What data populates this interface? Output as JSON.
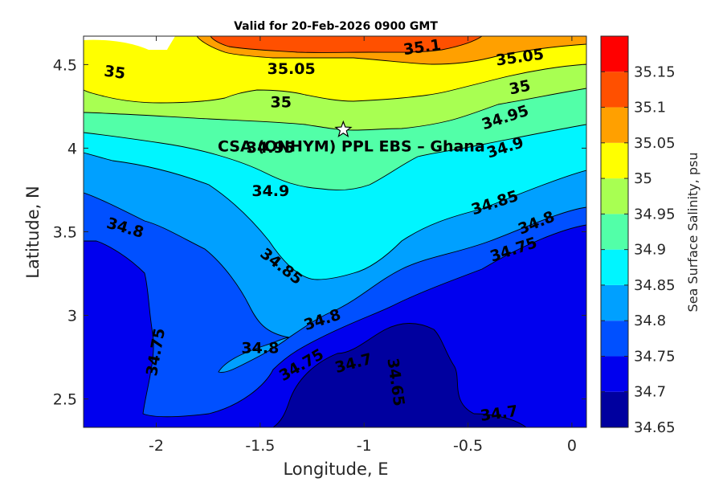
{
  "chart_data": {
    "type": "filled-contour-map",
    "title": "Valid for 20-Feb-2026 0900 GMT",
    "xlabel": "Longitude, E",
    "ylabel": "Latitude, N",
    "xlim": [
      -2.35,
      0.07
    ],
    "ylim": [
      2.33,
      4.67
    ],
    "xticks": [
      -2,
      -1.5,
      -1,
      -0.5,
      0
    ],
    "xtick_labels": [
      "-2",
      "-1.5",
      "-1",
      "-0.5",
      "0"
    ],
    "yticks": [
      2.5,
      3,
      3.5,
      4,
      4.5
    ],
    "ytick_labels": [
      "2.5",
      "3",
      "3.5",
      "4",
      "4.5"
    ],
    "colorbar": {
      "title": "Sea Surface Salinity, psu",
      "levels": [
        34.65,
        34.7,
        34.75,
        34.8,
        34.85,
        34.9,
        34.95,
        35,
        35.05,
        35.1,
        35.15
      ],
      "level_labels": [
        "34.65",
        "34.7",
        "34.75",
        "34.8",
        "34.85",
        "34.9",
        "34.95",
        "35",
        "35.05",
        "35.1",
        "35.15"
      ],
      "colors": [
        "#00009f",
        "#0000ee",
        "#0050ff",
        "#00a0ff",
        "#00f5ff",
        "#52ffa8",
        "#a8ff52",
        "#ffff00",
        "#ffa000",
        "#ff5000",
        "#ff0000"
      ]
    },
    "site": {
      "label": "CSA (ONHYM) PPL EBS  – Ghana",
      "lon": -1.1,
      "lat": 4.11
    },
    "contour_labels": [
      {
        "text": "35.1",
        "lon": -0.72,
        "lat": 4.6,
        "angle": -8
      },
      {
        "text": "35.05",
        "lon": -1.35,
        "lat": 4.47,
        "angle": 0
      },
      {
        "text": "35.05",
        "lon": -0.25,
        "lat": 4.54,
        "angle": -8
      },
      {
        "text": "35",
        "lon": -2.2,
        "lat": 4.45,
        "angle": 8
      },
      {
        "text": "35",
        "lon": -1.4,
        "lat": 4.27,
        "angle": 0
      },
      {
        "text": "35",
        "lon": -0.25,
        "lat": 4.36,
        "angle": -12
      },
      {
        "text": "34.95",
        "lon": -0.32,
        "lat": 4.18,
        "angle": -18
      },
      {
        "text": "34.95",
        "lon": -1.45,
        "lat": 4.0,
        "angle": 0
      },
      {
        "text": "34.9",
        "lon": -0.32,
        "lat": 4.0,
        "angle": -18
      },
      {
        "text": "34.9",
        "lon": -1.45,
        "lat": 3.74,
        "angle": 0
      },
      {
        "text": "34.85",
        "lon": -0.37,
        "lat": 3.67,
        "angle": -18
      },
      {
        "text": "34.85",
        "lon": -1.4,
        "lat": 3.29,
        "angle": 38
      },
      {
        "text": "34.8",
        "lon": -2.15,
        "lat": 3.52,
        "angle": 16
      },
      {
        "text": "34.8",
        "lon": -0.17,
        "lat": 3.55,
        "angle": -22
      },
      {
        "text": "34.8",
        "lon": -1.2,
        "lat": 2.97,
        "angle": -18
      },
      {
        "text": "34.8",
        "lon": -1.5,
        "lat": 2.8,
        "angle": 0
      },
      {
        "text": "34.75",
        "lon": -0.28,
        "lat": 3.39,
        "angle": -18
      },
      {
        "text": "34.75",
        "lon": -2.0,
        "lat": 2.78,
        "angle": -80
      },
      {
        "text": "34.75",
        "lon": -1.3,
        "lat": 2.7,
        "angle": -30
      },
      {
        "text": "34.7",
        "lon": -1.05,
        "lat": 2.71,
        "angle": -15
      },
      {
        "text": "34.65",
        "lon": -0.85,
        "lat": 2.6,
        "angle": 82
      },
      {
        "text": "34.7",
        "lon": -0.35,
        "lat": 2.41,
        "angle": -8
      }
    ]
  }
}
